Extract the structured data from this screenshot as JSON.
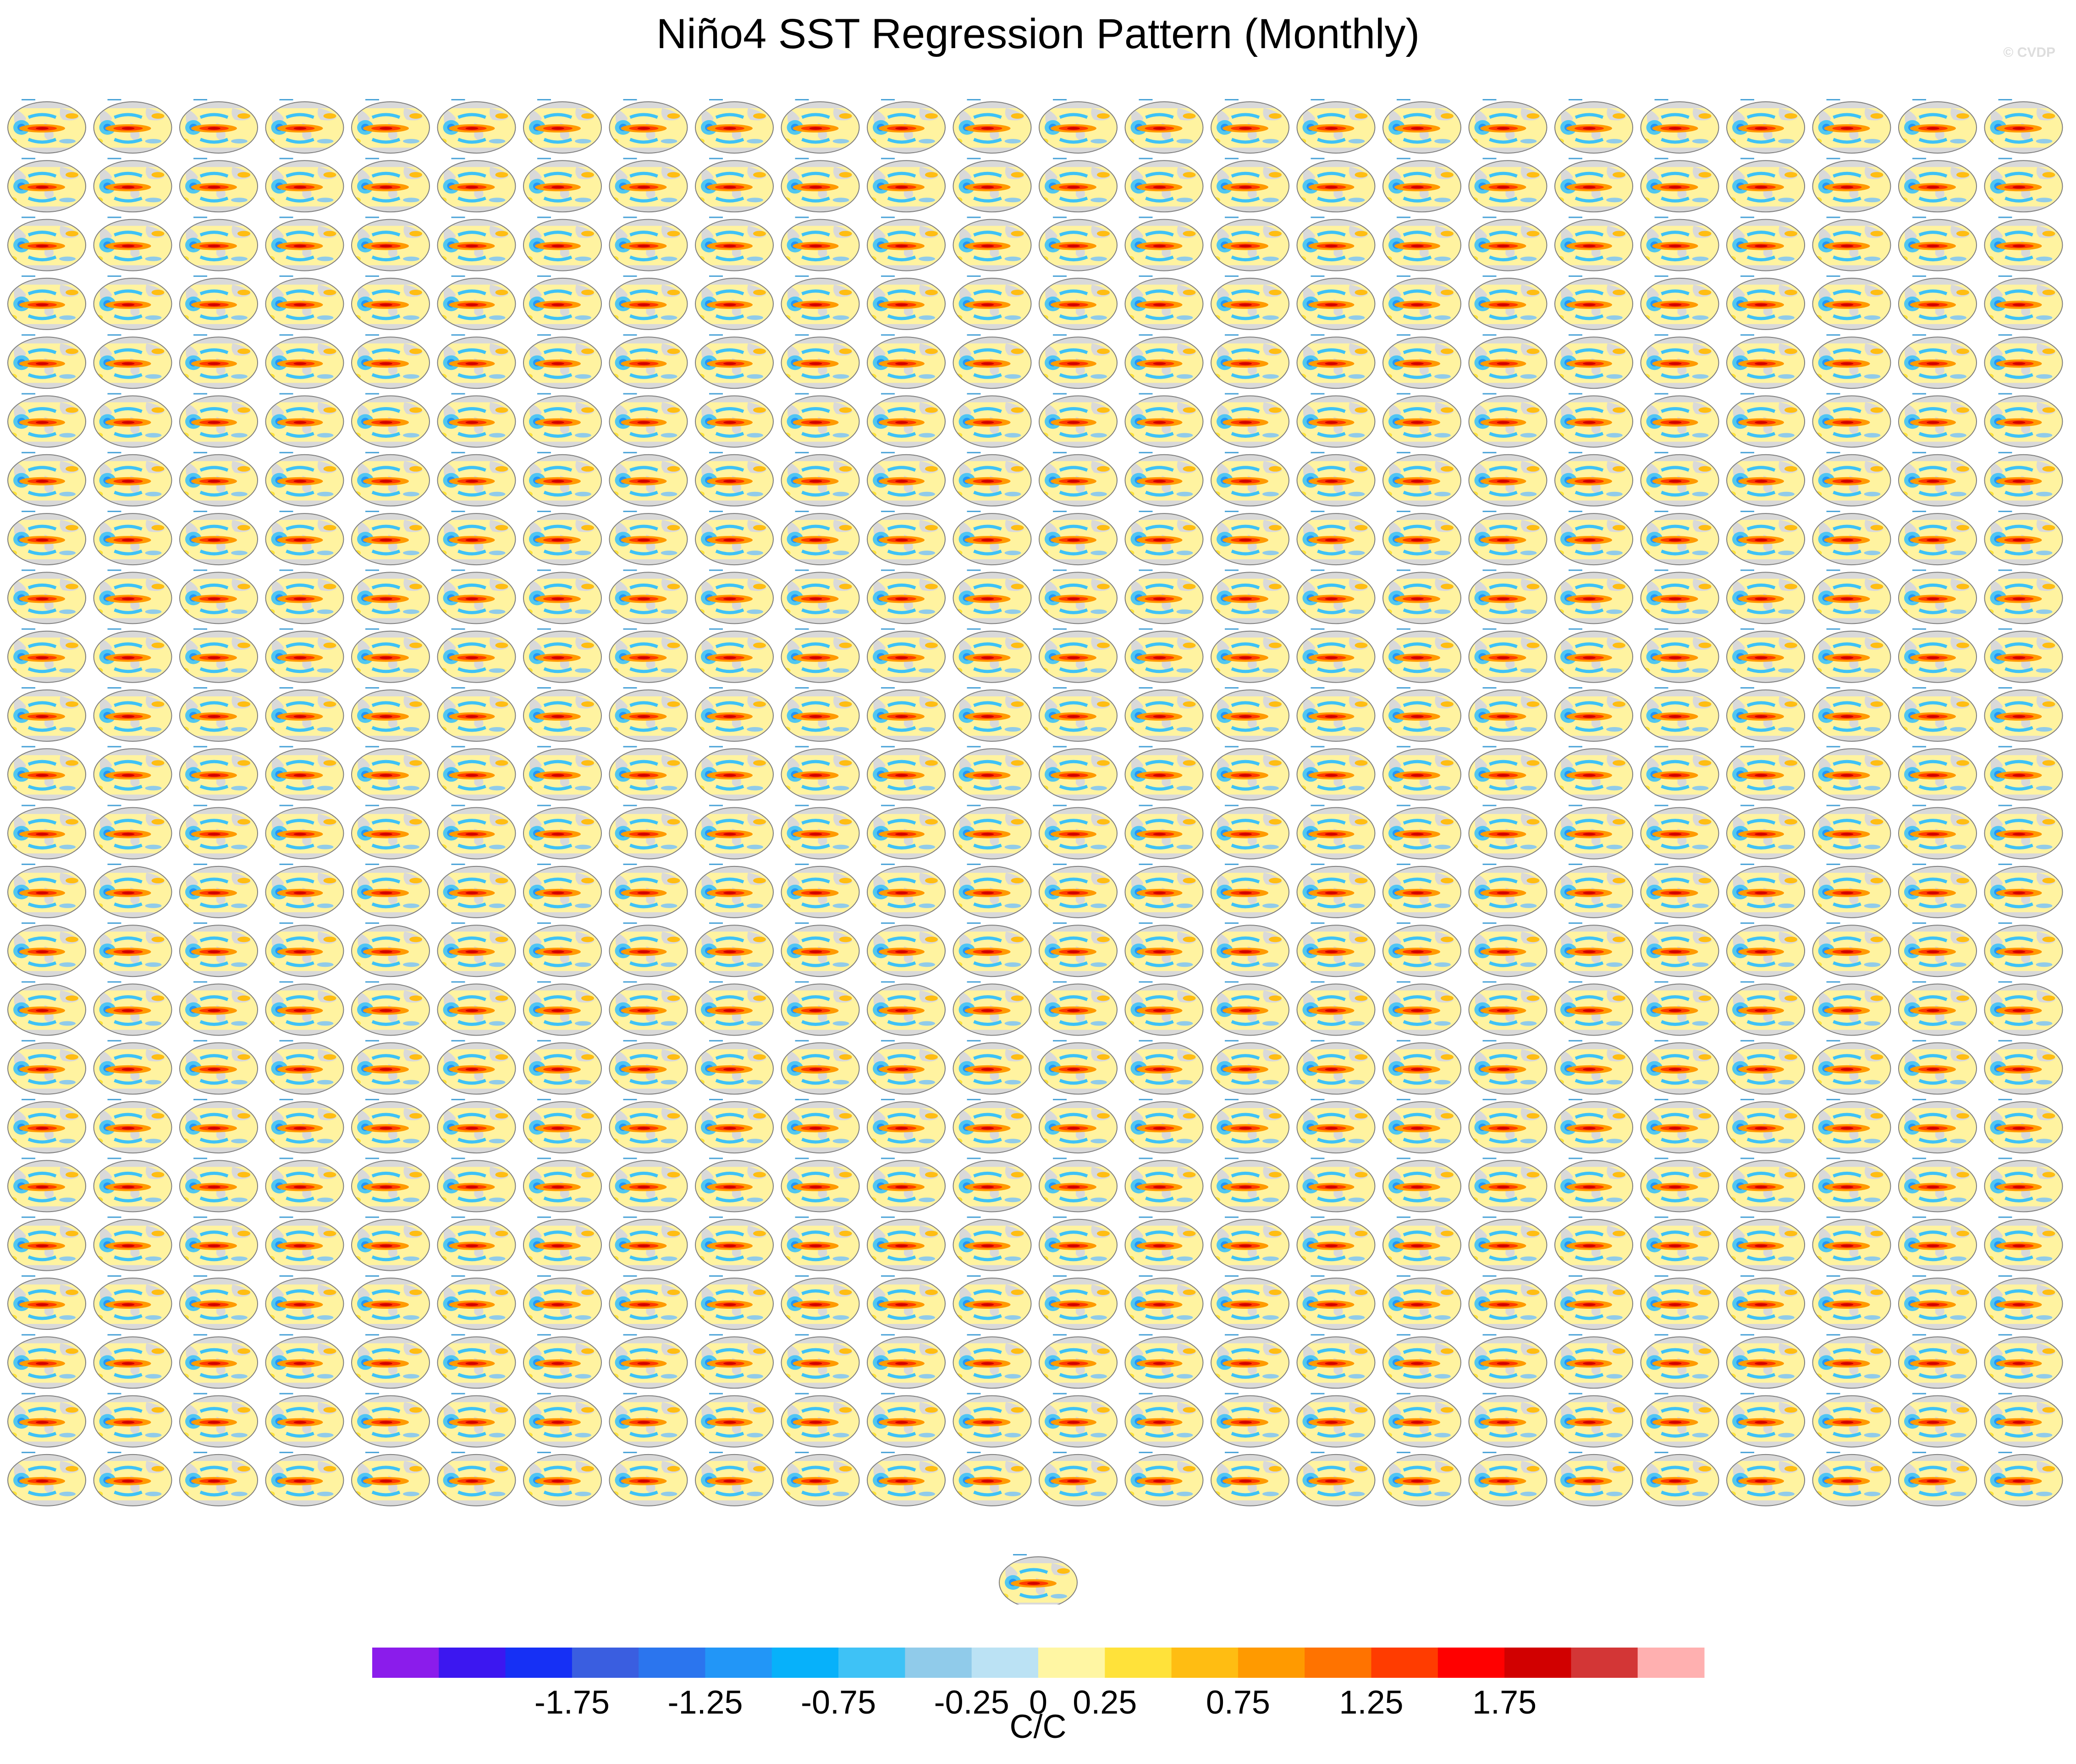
{
  "title": "Niño4 SST Regression Pattern (Monthly)",
  "watermark": "© CVDP",
  "colors": {
    "land": "#d9d9d9",
    "ocean_base": "#fff3a0",
    "panel_border": "#7f7f7f",
    "colorbar": [
      "#8b1ceb",
      "#3c17f0",
      "#1630f5",
      "#3a5ee0",
      "#2b75ee",
      "#2296f7",
      "#07b1fa",
      "#3ec2f6",
      "#90cbea",
      "#bbe2f4",
      "#fff6a3",
      "#ffe23a",
      "#ffbd12",
      "#ff9a00",
      "#ff7300",
      "#ff3c00",
      "#ff0000",
      "#d10000",
      "#d33636",
      "#ffb0b0"
    ]
  },
  "chart_data": {
    "type": "heatmap",
    "description_panels": "small-multiple global maps of regression coefficients",
    "rows": 24,
    "cols": 24,
    "extra_panels_last_row": 1,
    "colorbar": {
      "levels": [
        -2.25,
        -2,
        -1.75,
        -1.5,
        -1.25,
        -1,
        -0.75,
        -0.5,
        -0.25,
        0,
        0.25,
        0.5,
        0.75,
        1,
        1.25,
        1.5,
        1.75,
        2,
        2.25
      ],
      "tick_labels": [
        "-1.75",
        "-1.25",
        "-0.75",
        "-0.25",
        "0",
        "0.25",
        "0.75",
        "1.25",
        "1.75"
      ],
      "tick_values": [
        -1.75,
        -1.25,
        -0.75,
        -0.25,
        0,
        0.25,
        0.75,
        1.25,
        1.75
      ],
      "units": "C/C"
    }
  }
}
